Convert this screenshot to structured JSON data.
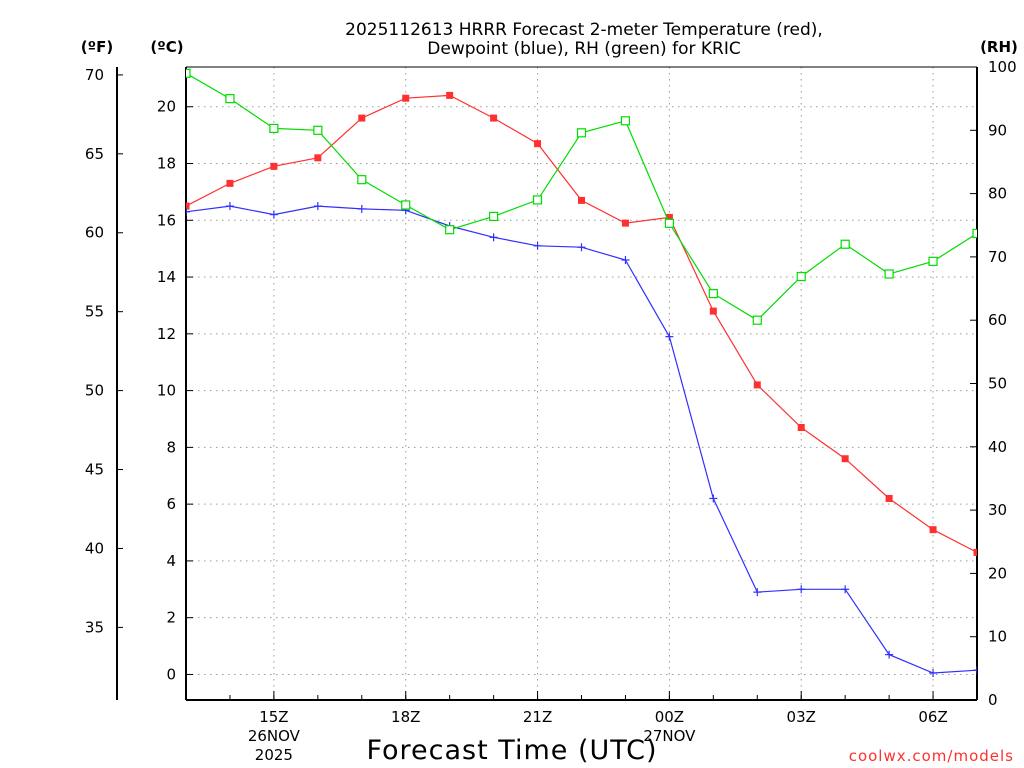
{
  "chart_data": {
    "type": "line",
    "title_line1": "2025112613 HRRR Forecast 2-meter Temperature (red),",
    "title_line2": "Dewpoint (blue), RH (green) for KRIC",
    "xlabel": "Forecast Time (UTC)",
    "credit": "coolwx.com/models",
    "unit_labels": {
      "fahrenheit": "(ºF)",
      "celsius": "(ºC)",
      "rh": "(RH)"
    },
    "x_hours": [
      13,
      14,
      15,
      16,
      17,
      18,
      19,
      20,
      21,
      22,
      23,
      24,
      25,
      26,
      27,
      28,
      29,
      30,
      31
    ],
    "x_range": [
      13,
      31
    ],
    "x_ticks": [
      {
        "hour": 15,
        "label": "15Z",
        "date": "26NOV",
        "year": "2025"
      },
      {
        "hour": 18,
        "label": "18Z"
      },
      {
        "hour": 21,
        "label": "21Z"
      },
      {
        "hour": 24,
        "label": "00Z",
        "date": "27NOV"
      },
      {
        "hour": 27,
        "label": "03Z"
      },
      {
        "hour": 30,
        "label": "06Z"
      }
    ],
    "y_celsius": {
      "range": [
        -0.9,
        21.4
      ],
      "ticks": [
        "0",
        "2",
        "4",
        "6",
        "8",
        "10",
        "12",
        "14",
        "16",
        "18",
        "20"
      ]
    },
    "y_fahrenheit": {
      "range": [
        30.4,
        70.5
      ],
      "ticks": [
        "35",
        "40",
        "45",
        "50",
        "55",
        "60",
        "65",
        "70"
      ]
    },
    "y_rh": {
      "range": [
        0,
        100
      ],
      "ticks": [
        "0",
        "10",
        "20",
        "30",
        "40",
        "50",
        "60",
        "70",
        "80",
        "90",
        "100"
      ]
    },
    "series": [
      {
        "name": "2-meter Temperature (°C)",
        "color": "#ff3030",
        "marker": "filled-square",
        "axis": "celsius",
        "values": [
          16.5,
          17.3,
          17.9,
          18.2,
          19.6,
          20.3,
          20.4,
          19.6,
          18.7,
          16.7,
          15.9,
          16.1,
          12.8,
          10.2,
          8.7,
          7.6,
          6.2,
          5.1,
          4.3
        ]
      },
      {
        "name": "Dewpoint (°C)",
        "color": "#3030ff",
        "marker": "plus",
        "axis": "celsius",
        "values": [
          16.3,
          16.5,
          16.2,
          16.5,
          16.4,
          16.35,
          15.8,
          15.4,
          15.1,
          15.05,
          14.6,
          11.9,
          6.2,
          2.9,
          3.0,
          3.0,
          0.7,
          0.05,
          0.15
        ]
      },
      {
        "name": "RH (%)",
        "color": "#00dd00",
        "marker": "open-square",
        "axis": "rh",
        "values": [
          99,
          95,
          90.3,
          90,
          82.2,
          78.2,
          74.3,
          76.4,
          79,
          89.6,
          91.5,
          75.3,
          64.2,
          60,
          66.9,
          72,
          67.3,
          69.3,
          73.7
        ]
      }
    ]
  }
}
